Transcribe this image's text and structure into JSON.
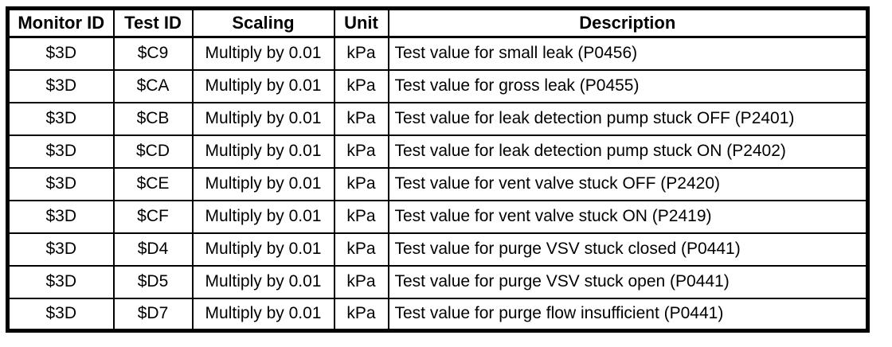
{
  "table": {
    "columns": [
      {
        "label": "Monitor ID"
      },
      {
        "label": "Test ID"
      },
      {
        "label": "Scaling"
      },
      {
        "label": "Unit"
      },
      {
        "label": "Description"
      }
    ],
    "rows": [
      [
        "$3D",
        "$C9",
        "Multiply by 0.01",
        "kPa",
        "Test value for small leak (P0456)"
      ],
      [
        "$3D",
        "$CA",
        "Multiply by 0.01",
        "kPa",
        "Test value for gross leak (P0455)"
      ],
      [
        "$3D",
        "$CB",
        "Multiply by 0.01",
        "kPa",
        "Test value for leak detection pump stuck OFF (P2401)"
      ],
      [
        "$3D",
        "$CD",
        "Multiply by 0.01",
        "kPa",
        "Test value for leak detection pump stuck ON (P2402)"
      ],
      [
        "$3D",
        "$CE",
        "Multiply by 0.01",
        "kPa",
        "Test value for vent valve stuck OFF (P2420)"
      ],
      [
        "$3D",
        "$CF",
        "Multiply by 0.01",
        "kPa",
        "Test value for vent valve stuck ON (P2419)"
      ],
      [
        "$3D",
        "$D4",
        "Multiply by 0.01",
        "kPa",
        "Test value for purge VSV stuck closed (P0441)"
      ],
      [
        "$3D",
        "$D5",
        "Multiply by 0.01",
        "kPa",
        "Test value for purge VSV stuck open (P0441)"
      ],
      [
        "$3D",
        "$D7",
        "Multiply by 0.01",
        "kPa",
        "Test value for purge flow insufficient (P0441)"
      ]
    ],
    "colors": {
      "border": "#000000",
      "background": "#ffffff",
      "text": "#000000"
    }
  }
}
